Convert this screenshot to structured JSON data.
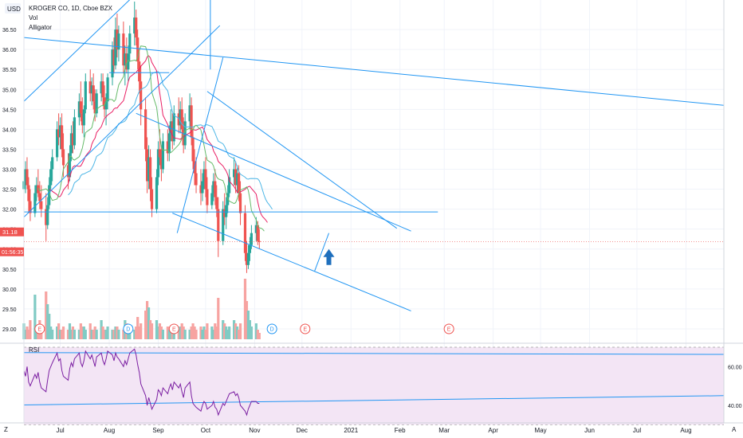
{
  "header": {
    "currency": "USD",
    "symbol": "KROGER CO, 1D, Cboe BZX",
    "indicator_vol": "Vol",
    "indicator_alligator": "Alligator"
  },
  "price_axis": {
    "ticks": [
      "36.50",
      "36.00",
      "35.50",
      "35.00",
      "34.50",
      "34.00",
      "33.50",
      "33.00",
      "32.50",
      "32.00",
      "31.50",
      "31.00",
      "30.50",
      "30.00",
      "29.50",
      "29.00"
    ],
    "last_price": "31.18",
    "countdown": "01:56:35"
  },
  "rsi_panel": {
    "label": "RSI",
    "ticks": [
      "60.00",
      "40.00"
    ]
  },
  "time_axis": {
    "labels": [
      "Jul",
      "Aug",
      "Sep",
      "Oct",
      "Nov",
      "Dec",
      "2021",
      "Feb",
      "Mar",
      "Apr",
      "May",
      "Jun",
      "Jul",
      "Aug"
    ]
  },
  "corner_labels": {
    "left": "Z",
    "right": "A"
  },
  "earnings_marker": "E",
  "dividend_marker": "D",
  "colors": {
    "up": "#26a69a",
    "down": "#ef5350",
    "vol_up": "#80cbc4",
    "vol_down": "#f7a3a1",
    "trendline": "#2196f3",
    "jaw": "#4db6e6",
    "teeth": "#e91e63",
    "lips": "#66bb6a",
    "rsi_line": "#7b1fa2",
    "rsi_fill": "#f3e5f5",
    "arrow": "#1e6fbd"
  },
  "chart_data": {
    "type": "candlestick",
    "title": "KROGER CO, 1D, Cboe BZX",
    "ylim": [
      28.7,
      37.2
    ],
    "x_range": [
      "2020-06-08",
      "2021-08-25"
    ],
    "last_price": 31.18,
    "bar_start": "2020-06-08",
    "bars": [
      [
        32.5,
        32.9,
        32.1,
        32.7
      ],
      [
        32.7,
        33.2,
        32.4,
        33.0
      ],
      [
        33.0,
        33.3,
        32.5,
        32.6
      ],
      [
        32.6,
        32.8,
        31.9,
        32.2
      ],
      [
        32.2,
        32.5,
        31.7,
        31.9
      ],
      [
        31.9,
        32.6,
        31.8,
        32.4
      ],
      [
        32.4,
        32.8,
        32.2,
        32.6
      ],
      [
        32.6,
        33.0,
        32.3,
        32.4
      ],
      [
        32.4,
        32.7,
        32.0,
        32.2
      ],
      [
        32.2,
        32.6,
        31.8,
        32.0
      ],
      [
        32.0,
        32.4,
        31.2,
        31.6
      ],
      [
        31.6,
        32.3,
        31.5,
        32.1
      ],
      [
        32.1,
        32.8,
        32.0,
        32.6
      ],
      [
        32.6,
        33.2,
        32.5,
        33.0
      ],
      [
        33.0,
        33.5,
        32.7,
        33.3
      ],
      [
        33.3,
        34.2,
        33.2,
        34.0
      ],
      [
        34.0,
        34.4,
        33.6,
        33.8
      ],
      [
        33.8,
        34.3,
        33.5,
        34.1
      ],
      [
        34.1,
        34.4,
        33.3,
        33.5
      ],
      [
        33.5,
        33.9,
        32.8,
        33.1
      ],
      [
        33.1,
        33.4,
        32.5,
        32.8
      ],
      [
        32.8,
        33.6,
        32.7,
        33.4
      ],
      [
        33.4,
        34.1,
        33.2,
        33.9
      ],
      [
        33.9,
        34.2,
        33.4,
        33.6
      ],
      [
        33.6,
        34.5,
        33.5,
        34.3
      ],
      [
        34.3,
        34.9,
        34.1,
        34.7
      ],
      [
        34.7,
        35.2,
        34.2,
        34.4
      ],
      [
        34.4,
        34.8,
        33.9,
        34.1
      ],
      [
        34.1,
        34.6,
        33.8,
        34.5
      ],
      [
        34.5,
        35.4,
        34.4,
        35.2
      ],
      [
        35.2,
        35.5,
        34.7,
        34.9
      ],
      [
        34.9,
        35.3,
        34.6,
        35.1
      ],
      [
        35.1,
        35.4,
        34.5,
        34.7
      ],
      [
        34.7,
        35.0,
        34.2,
        34.4
      ],
      [
        34.4,
        35.0,
        34.3,
        34.9
      ],
      [
        34.9,
        35.4,
        34.7,
        35.2
      ],
      [
        35.2,
        35.4,
        34.6,
        34.8
      ],
      [
        34.8,
        35.1,
        34.3,
        34.5
      ],
      [
        34.5,
        34.9,
        34.1,
        34.7
      ],
      [
        34.7,
        35.4,
        34.5,
        35.3
      ],
      [
        35.3,
        36.2,
        35.1,
        36.0
      ],
      [
        36.0,
        36.3,
        35.4,
        35.6
      ],
      [
        35.6,
        36.8,
        35.5,
        36.5
      ],
      [
        36.5,
        36.9,
        35.8,
        36.0
      ],
      [
        36.0,
        36.6,
        35.7,
        36.4
      ],
      [
        36.4,
        36.7,
        35.4,
        35.6
      ],
      [
        35.6,
        36.1,
        35.1,
        35.9
      ],
      [
        35.9,
        36.3,
        35.4,
        35.5
      ],
      [
        35.5,
        36.1,
        35.2,
        35.9
      ],
      [
        35.9,
        36.6,
        35.7,
        36.4
      ],
      [
        36.4,
        37.2,
        36.1,
        36.8
      ],
      [
        36.8,
        37.0,
        36.1,
        36.3
      ],
      [
        36.3,
        36.5,
        35.5,
        35.7
      ],
      [
        35.7,
        36.0,
        34.9,
        35.2
      ],
      [
        35.2,
        35.6,
        34.1,
        34.5
      ],
      [
        34.5,
        34.8,
        33.2,
        33.5
      ],
      [
        33.5,
        33.8,
        32.4,
        32.7
      ],
      [
        32.7,
        33.6,
        32.5,
        33.3
      ],
      [
        33.3,
        33.5,
        32.2,
        32.5
      ],
      [
        32.5,
        32.8,
        31.8,
        32.0
      ],
      [
        32.0,
        33.0,
        31.9,
        32.8
      ],
      [
        32.8,
        33.7,
        32.6,
        33.5
      ],
      [
        33.5,
        34.0,
        33.1,
        33.3
      ],
      [
        33.3,
        33.6,
        32.7,
        33.0
      ],
      [
        33.0,
        33.9,
        32.9,
        33.7
      ],
      [
        33.7,
        34.0,
        33.2,
        33.4
      ],
      [
        33.4,
        34.1,
        33.2,
        33.9
      ],
      [
        33.9,
        34.5,
        33.7,
        34.2
      ],
      [
        34.2,
        34.4,
        33.5,
        33.7
      ],
      [
        33.7,
        34.6,
        33.6,
        34.4
      ],
      [
        34.4,
        34.8,
        33.9,
        34.1
      ],
      [
        34.1,
        34.7,
        33.9,
        34.5
      ],
      [
        34.5,
        34.8,
        33.8,
        34.0
      ],
      [
        34.0,
        34.3,
        33.4,
        33.6
      ],
      [
        33.6,
        34.4,
        33.5,
        34.2
      ],
      [
        34.2,
        34.9,
        34.0,
        34.6
      ],
      [
        34.6,
        34.8,
        33.6,
        33.8
      ],
      [
        33.8,
        34.0,
        33.0,
        33.2
      ],
      [
        33.2,
        33.5,
        32.6,
        32.9
      ],
      [
        32.9,
        33.3,
        32.4,
        32.6
      ],
      [
        32.6,
        33.0,
        32.1,
        32.4
      ],
      [
        32.4,
        32.9,
        32.2,
        32.7
      ],
      [
        32.7,
        33.2,
        32.5,
        33.0
      ],
      [
        33.0,
        33.3,
        32.3,
        32.5
      ],
      [
        32.5,
        32.8,
        31.9,
        32.1
      ],
      [
        32.1,
        32.6,
        32.0,
        32.4
      ],
      [
        32.4,
        32.9,
        32.2,
        32.7
      ],
      [
        32.7,
        33.0,
        32.1,
        32.3
      ],
      [
        32.3,
        32.6,
        31.8,
        32.0
      ],
      [
        32.0,
        32.3,
        30.8,
        31.2
      ],
      [
        31.2,
        32.2,
        31.1,
        32.0
      ],
      [
        32.0,
        32.4,
        31.6,
        31.8
      ],
      [
        31.8,
        32.3,
        31.5,
        32.1
      ],
      [
        32.1,
        32.6,
        31.9,
        32.4
      ],
      [
        32.4,
        33.0,
        32.3,
        32.8
      ],
      [
        32.8,
        33.3,
        32.6,
        33.0
      ],
      [
        33.0,
        33.2,
        32.4,
        32.6
      ],
      [
        32.6,
        33.1,
        32.4,
        32.9
      ],
      [
        32.9,
        33.1,
        32.2,
        32.4
      ],
      [
        32.4,
        32.7,
        31.6,
        31.9
      ],
      [
        31.9,
        32.1,
        30.7,
        30.9
      ],
      [
        30.9,
        31.2,
        30.4,
        30.6
      ],
      [
        30.6,
        31.1,
        30.5,
        30.9
      ],
      [
        30.9,
        31.3,
        30.7,
        31.1
      ],
      [
        31.1,
        31.6,
        31.0,
        31.4
      ],
      [
        31.4,
        31.8,
        31.2,
        31.6
      ],
      [
        31.6,
        31.7,
        31.1,
        31.2
      ],
      [
        31.2,
        31.5,
        31.0,
        31.18
      ]
    ],
    "volume_relative": [
      0.25,
      0.15,
      0.2,
      0.15,
      0.3,
      0.7,
      0.2,
      0.15,
      0.3,
      0.2,
      0.75,
      0.55,
      0.4,
      0.2,
      0.15,
      0.2,
      0.25,
      0.15,
      0.15,
      0.2,
      0.15,
      0.25,
      0.15,
      0.2,
      0.15,
      0.15,
      0.25,
      0.2,
      0.2,
      0.15,
      0.25,
      0.15,
      0.15,
      0.2,
      0.15,
      0.3,
      0.2,
      0.15,
      0.15,
      0.2,
      0.15,
      0.15,
      0.2,
      0.2,
      0.15,
      0.15,
      0.3,
      0.25,
      0.2,
      0.15,
      0.15,
      0.2,
      0.35,
      0.2,
      0.25,
      0.45,
      0.6,
      0.5,
      0.3,
      0.25,
      0.3,
      0.2,
      0.25,
      0.2,
      0.15,
      0.2,
      0.15,
      0.15,
      0.2,
      0.15,
      0.15,
      0.2,
      0.25,
      0.2,
      0.15,
      0.15,
      0.2,
      0.25,
      0.2,
      0.15,
      0.2,
      0.15,
      0.2,
      0.15,
      0.25,
      0.2,
      0.15,
      0.25,
      0.2,
      0.65,
      0.3,
      0.25,
      0.2,
      0.15,
      0.2,
      0.3,
      0.25,
      0.2,
      0.15,
      0.25,
      0.95,
      0.6,
      0.45,
      0.3,
      0.2,
      0.25,
      0.15,
      0.1
    ],
    "alligator": {
      "jaw_label": "Jaw",
      "teeth_label": "Teeth",
      "lips_label": "Lips"
    },
    "trendlines": [
      {
        "from": [
          "2020-06-08",
          34.7
        ],
        "to": [
          "2020-08-18",
          37.4
        ]
      },
      {
        "from": [
          "2020-06-08",
          36.3
        ],
        "to": [
          "2021-08-25",
          34.6
        ]
      },
      {
        "from": [
          "2020-08-01",
          35.42
        ],
        "to": [
          "2020-09-08",
          35.42
        ]
      },
      {
        "from": [
          "2020-06-08",
          31.8
        ],
        "to": [
          "2020-10-10",
          36.6
        ]
      },
      {
        "from": [
          "2020-08-18",
          34.4
        ],
        "to": [
          "2021-02-08",
          31.45
        ]
      },
      {
        "from": [
          "2020-09-10",
          31.9
        ],
        "to": [
          "2021-02-08",
          29.45
        ]
      },
      {
        "from": [
          "2020-09-13",
          31.4
        ],
        "to": [
          "2020-10-12",
          35.8
        ]
      },
      {
        "from": [
          "2020-10-04",
          37.5
        ],
        "to": [
          "2020-10-04",
          35.5
        ]
      },
      {
        "from": [
          "2020-10-02",
          34.95
        ],
        "to": [
          "2021-01-30",
          31.52
        ]
      },
      {
        "from": [
          "2020-06-08",
          31.93
        ],
        "to": [
          "2021-02-25",
          31.93
        ]
      },
      {
        "from": [
          "2020-12-09",
          30.45
        ],
        "to": [
          "2020-12-18",
          31.4
        ]
      }
    ],
    "rsi": {
      "ylim": [
        33,
        70
      ],
      "levels": [
        70,
        30
      ],
      "values": [
        58,
        55,
        60,
        52,
        50,
        56,
        54,
        57,
        52,
        49,
        47,
        53,
        58,
        60,
        62,
        67,
        63,
        64,
        58,
        55,
        53,
        59,
        62,
        60,
        64,
        67,
        62,
        60,
        63,
        68,
        64,
        66,
        63,
        60,
        65,
        67,
        63,
        61,
        64,
        68,
        66,
        63,
        67,
        65,
        64,
        60,
        63,
        61,
        64,
        67,
        69,
        66,
        61,
        57,
        51,
        45,
        40,
        44,
        41,
        38,
        43,
        48,
        47,
        45,
        49,
        46,
        49,
        51,
        48,
        52,
        49,
        51,
        47,
        44,
        49,
        52,
        45,
        41,
        40,
        39,
        37,
        40,
        42,
        41,
        38,
        40,
        42,
        39,
        38,
        35,
        41,
        40,
        42,
        44,
        46,
        47,
        45,
        46,
        44,
        40,
        37,
        35,
        38,
        40,
        42,
        42,
        41,
        41
      ],
      "trendlines": [
        {
          "from": [
            "2020-06-08",
            40.2
          ],
          "to": [
            "2021-08-25",
            45.0
          ]
        },
        {
          "from": [
            "2020-06-08",
            67.2
          ],
          "to": [
            "2021-08-25",
            66.3
          ]
        }
      ]
    },
    "x_ticks": [
      {
        "label": "Jul",
        "date": "2020-07-01"
      },
      {
        "label": "Aug",
        "date": "2020-08-01"
      },
      {
        "label": "Sep",
        "date": "2020-09-01"
      },
      {
        "label": "Oct",
        "date": "2020-10-01"
      },
      {
        "label": "Nov",
        "date": "2020-11-01"
      },
      {
        "label": "Dec",
        "date": "2020-12-01"
      },
      {
        "label": "2021",
        "date": "2021-01-01"
      },
      {
        "label": "Feb",
        "date": "2021-02-01"
      },
      {
        "label": "Mar",
        "date": "2021-03-01"
      },
      {
        "label": "Apr",
        "date": "2021-04-01"
      },
      {
        "label": "May",
        "date": "2021-05-01"
      },
      {
        "label": "Jun",
        "date": "2021-06-01"
      },
      {
        "label": "Jul",
        "date": "2021-07-01"
      },
      {
        "label": "Aug",
        "date": "2021-08-01"
      }
    ],
    "events": [
      {
        "type": "E",
        "date": "2020-06-18"
      },
      {
        "type": "D",
        "date": "2020-08-13"
      },
      {
        "type": "E",
        "date": "2020-09-11"
      },
      {
        "type": "D",
        "date": "2020-11-12"
      },
      {
        "type": "E",
        "date": "2020-12-03"
      },
      {
        "type": "E",
        "date": "2021-03-04"
      }
    ]
  }
}
